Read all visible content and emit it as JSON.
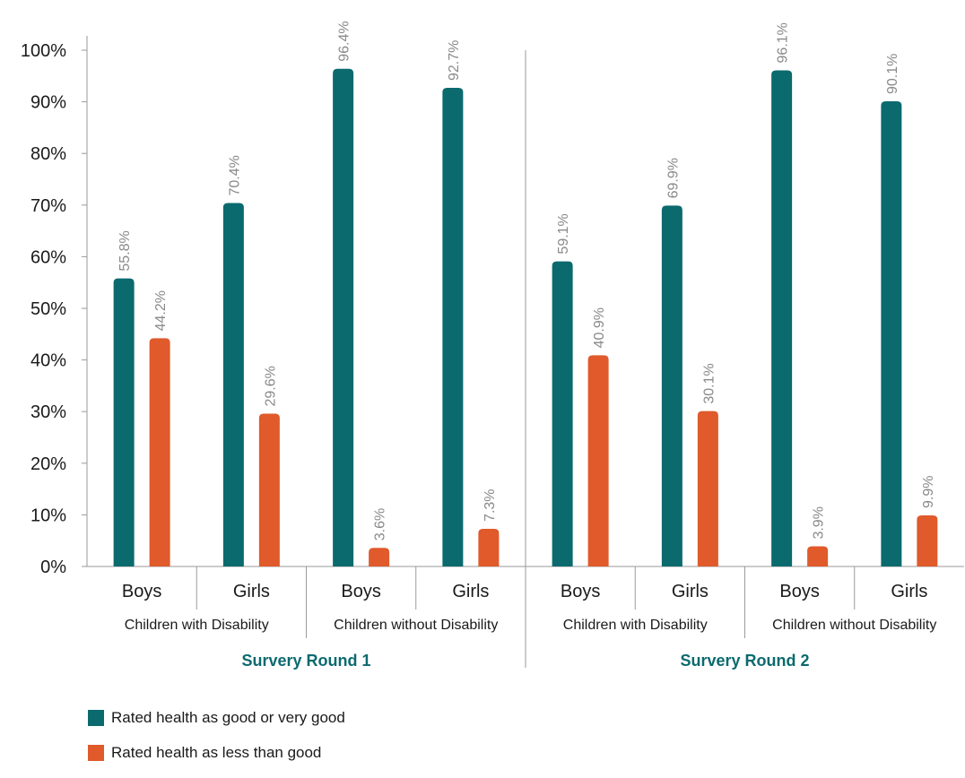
{
  "colors": {
    "good": "#0b6a6e",
    "less": "#e05a2b",
    "round_title": "#0b6a6e",
    "axis": "#9a9a9a"
  },
  "chart_data": {
    "type": "bar",
    "ylim": [
      0,
      100
    ],
    "yticks": [
      "0%",
      "10%",
      "20%",
      "30%",
      "40%",
      "50%",
      "60%",
      "70%",
      "80%",
      "90%",
      "100%"
    ],
    "rounds": [
      {
        "name": "Survery Round 1",
        "groups": [
          {
            "name": "Children with Disability",
            "categories": [
              {
                "name": "Boys",
                "good": 55.8,
                "less": 44.2,
                "good_label": "55.8%",
                "less_label": "44.2%"
              },
              {
                "name": "Girls",
                "good": 70.4,
                "less": 29.6,
                "good_label": "70.4%",
                "less_label": "29.6%"
              }
            ]
          },
          {
            "name": "Children without Disability",
            "categories": [
              {
                "name": "Boys",
                "good": 96.4,
                "less": 3.6,
                "good_label": "96.4%",
                "less_label": "3.6%"
              },
              {
                "name": "Girls",
                "good": 92.7,
                "less": 7.3,
                "good_label": "92.7%",
                "less_label": "7.3%"
              }
            ]
          }
        ]
      },
      {
        "name": "Survery Round 2",
        "groups": [
          {
            "name": "Children with Disability",
            "categories": [
              {
                "name": "Boys",
                "good": 59.1,
                "less": 40.9,
                "good_label": "59.1%",
                "less_label": "40.9%"
              },
              {
                "name": "Girls",
                "good": 69.9,
                "less": 30.1,
                "good_label": "69.9%",
                "less_label": "30.1%"
              }
            ]
          },
          {
            "name": "Children without Disability",
            "categories": [
              {
                "name": "Boys",
                "good": 96.1,
                "less": 3.9,
                "good_label": "96.1%",
                "less_label": "3.9%"
              },
              {
                "name": "Girls",
                "good": 90.1,
                "less": 9.9,
                "good_label": "90.1%",
                "less_label": "9.9%"
              }
            ]
          }
        ]
      }
    ],
    "series": [
      {
        "key": "good",
        "name": "Rated health as good or very good"
      },
      {
        "key": "less",
        "name": "Rated health as less than good"
      }
    ]
  }
}
